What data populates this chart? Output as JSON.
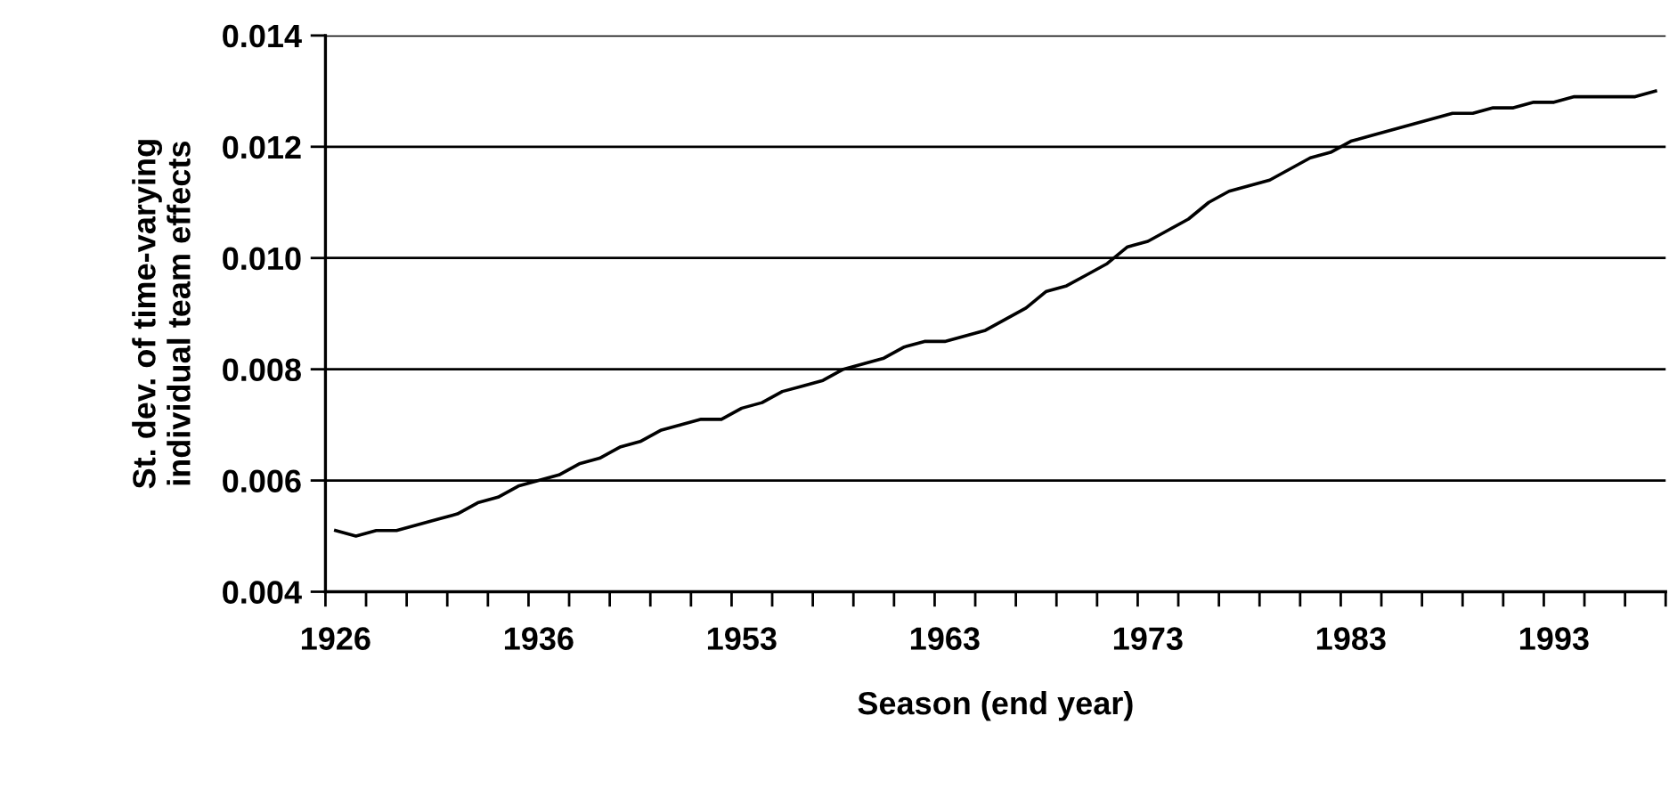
{
  "chart_data": {
    "type": "line",
    "xlabel": "Season (end year)",
    "ylabel": "St. dev. of time-varying\nindividual team effects",
    "categories": [
      "1926",
      null,
      null,
      null,
      null,
      null,
      null,
      null,
      null,
      null,
      "1936",
      null,
      null,
      null,
      null,
      null,
      null,
      null,
      null,
      null,
      "1953",
      null,
      null,
      null,
      null,
      null,
      null,
      null,
      null,
      null,
      "1963",
      null,
      null,
      null,
      null,
      null,
      null,
      null,
      null,
      null,
      "1973",
      null,
      null,
      null,
      null,
      null,
      null,
      null,
      null,
      null,
      "1983",
      null,
      null,
      null,
      null,
      null,
      null,
      null,
      null,
      null,
      "1993",
      null,
      null,
      null,
      null,
      null
    ],
    "series": [
      {
        "color": "#000000",
        "values": [
          0.0051,
          0.005,
          0.0051,
          0.0051,
          0.0052,
          0.0053,
          0.0054,
          0.0056,
          0.0057,
          0.0059,
          0.006,
          0.0061,
          0.0063,
          0.0064,
          0.0066,
          0.0067,
          0.0069,
          0.007,
          0.0071,
          0.0071,
          0.0073,
          0.0074,
          0.0076,
          0.0077,
          0.0078,
          0.008,
          0.0081,
          0.0082,
          0.0084,
          0.0085,
          0.0085,
          0.0086,
          0.0087,
          0.0089,
          0.0091,
          0.0094,
          0.0095,
          0.0097,
          0.0099,
          0.0102,
          0.0103,
          0.0105,
          0.0107,
          0.011,
          0.0112,
          0.0113,
          0.0114,
          0.0116,
          0.0118,
          0.0119,
          0.0121,
          0.0122,
          0.0123,
          0.0124,
          0.0125,
          0.0126,
          0.0126,
          0.0127,
          0.0127,
          0.0128,
          0.0128,
          0.0129,
          0.0129,
          0.0129,
          0.0129,
          0.013
        ]
      }
    ],
    "ylim": [
      0.004,
      0.014
    ],
    "yticks": [
      {
        "value": 0.004,
        "label": "0.004"
      },
      {
        "value": 0.006,
        "label": "0.006"
      },
      {
        "value": 0.008,
        "label": "0.008"
      },
      {
        "value": 0.01,
        "label": "0.010"
      },
      {
        "value": 0.012,
        "label": "0.012"
      },
      {
        "value": 0.014,
        "label": "0.014"
      }
    ],
    "grid": "y",
    "legend": false,
    "marker": "none",
    "line_style": "solid"
  }
}
